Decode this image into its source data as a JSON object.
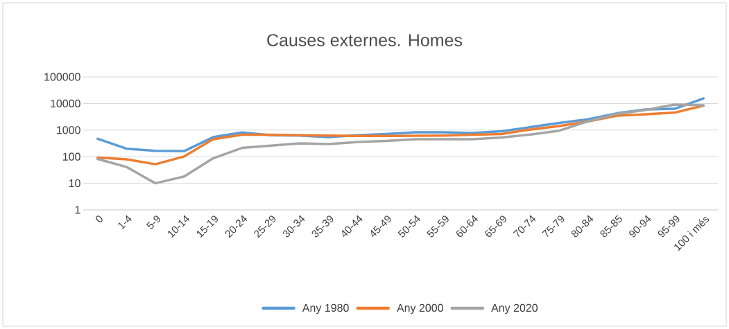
{
  "chart_data": {
    "type": "line",
    "title": "Causes externes. Homes",
    "categories": [
      "0",
      "1-4",
      "5-9",
      "10-14",
      "15-19",
      "20-24",
      "25-29",
      "30-34",
      "35-39",
      "40-44",
      "45-49",
      "50-54",
      "55-59",
      "60-64",
      "65-69",
      "70-74",
      "75-79",
      "80-84",
      "85-85",
      "90-94",
      "95-99",
      "100 i més"
    ],
    "series": [
      {
        "name": "Any 1980",
        "color": "#5b9bd5",
        "values": [
          470,
          200,
          167,
          162,
          540,
          810,
          640,
          620,
          540,
          640,
          710,
          830,
          830,
          780,
          900,
          1290,
          1850,
          2560,
          4270,
          6000,
          6300,
          15500
        ]
      },
      {
        "name": "Any 2000",
        "color": "#ed7d31",
        "values": [
          92,
          80,
          52,
          102,
          455,
          665,
          665,
          640,
          620,
          600,
          600,
          610,
          620,
          665,
          710,
          1050,
          1410,
          2130,
          3470,
          3900,
          4530,
          8270
        ]
      },
      {
        "name": "Any 2020",
        "color": "#a5a5a5",
        "values": [
          82,
          41,
          10,
          18,
          87,
          213,
          260,
          315,
          300,
          355,
          390,
          455,
          455,
          455,
          525,
          680,
          950,
          2130,
          4070,
          5700,
          9100,
          8500
        ]
      }
    ],
    "ylim": [
      1,
      100000
    ],
    "yticks": [
      1,
      10,
      100,
      1000,
      10000,
      100000
    ],
    "log": true,
    "grid": "y",
    "legend": "bottom",
    "marker": "none",
    "line_style": "solid"
  }
}
